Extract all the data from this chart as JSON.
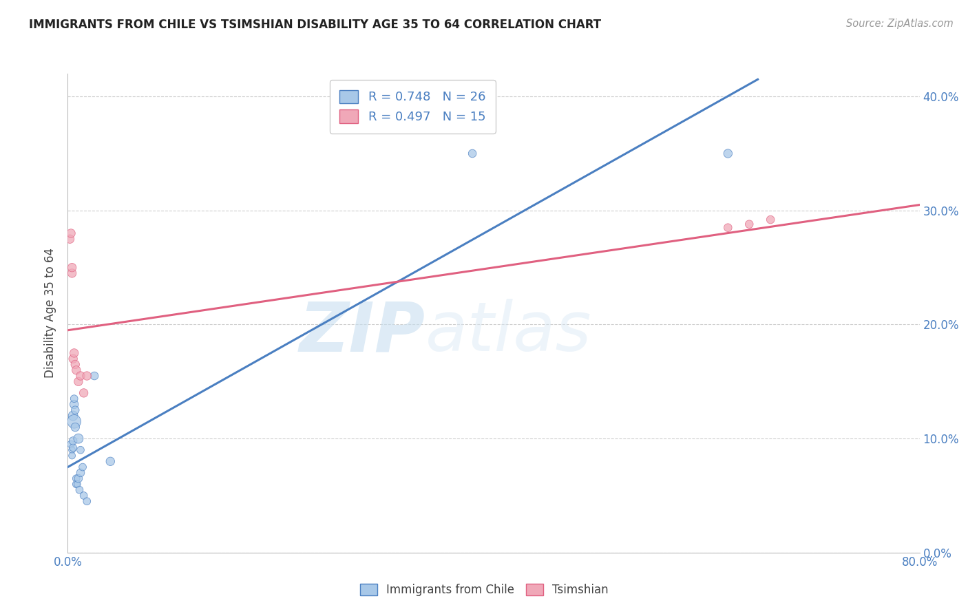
{
  "title": "IMMIGRANTS FROM CHILE VS TSIMSHIAN DISABILITY AGE 35 TO 64 CORRELATION CHART",
  "source": "Source: ZipAtlas.com",
  "ylabel": "Disability Age 35 to 64",
  "legend_label_blue": "Immigrants from Chile",
  "legend_label_pink": "Tsimshian",
  "R_blue": 0.748,
  "N_blue": 26,
  "R_pink": 0.497,
  "N_pink": 15,
  "xlim": [
    0.0,
    0.8
  ],
  "ylim": [
    0.0,
    0.42
  ],
  "xticks": [
    0.0,
    0.1,
    0.2,
    0.3,
    0.4,
    0.5,
    0.6,
    0.7,
    0.8
  ],
  "yticks": [
    0.0,
    0.1,
    0.2,
    0.3,
    0.4
  ],
  "color_blue": "#a8c8e8",
  "color_blue_line": "#4a7fc1",
  "color_pink": "#f0a8b8",
  "color_pink_line": "#e06080",
  "color_axis_labels": "#4a7fc1",
  "watermark_zip": "ZIP",
  "watermark_atlas": "atlas",
  "blue_scatter_x": [
    0.003,
    0.004,
    0.004,
    0.005,
    0.005,
    0.005,
    0.006,
    0.006,
    0.006,
    0.007,
    0.007,
    0.008,
    0.008,
    0.009,
    0.01,
    0.01,
    0.011,
    0.012,
    0.012,
    0.014,
    0.015,
    0.018,
    0.025,
    0.04,
    0.38,
    0.62
  ],
  "blue_scatter_y": [
    0.095,
    0.09,
    0.085,
    0.092,
    0.098,
    0.12,
    0.115,
    0.13,
    0.135,
    0.11,
    0.125,
    0.065,
    0.06,
    0.06,
    0.065,
    0.1,
    0.055,
    0.07,
    0.09,
    0.075,
    0.05,
    0.045,
    0.155,
    0.08,
    0.35,
    0.35
  ],
  "blue_scatter_sizes": [
    60,
    50,
    50,
    60,
    70,
    100,
    200,
    80,
    60,
    80,
    70,
    60,
    60,
    50,
    70,
    100,
    60,
    70,
    60,
    60,
    60,
    60,
    70,
    80,
    70,
    80
  ],
  "pink_scatter_x": [
    0.002,
    0.003,
    0.004,
    0.004,
    0.005,
    0.006,
    0.007,
    0.008,
    0.01,
    0.012,
    0.015,
    0.018,
    0.62,
    0.64,
    0.66
  ],
  "pink_scatter_y": [
    0.275,
    0.28,
    0.245,
    0.25,
    0.17,
    0.175,
    0.165,
    0.16,
    0.15,
    0.155,
    0.14,
    0.155,
    0.285,
    0.288,
    0.292
  ],
  "pink_scatter_sizes": [
    80,
    80,
    80,
    80,
    80,
    80,
    80,
    80,
    80,
    80,
    80,
    80,
    70,
    70,
    70
  ],
  "blue_line_x": [
    0.0,
    0.648
  ],
  "blue_line_y": [
    0.075,
    0.415
  ],
  "pink_line_x": [
    0.0,
    0.8
  ],
  "pink_line_y": [
    0.195,
    0.305
  ]
}
